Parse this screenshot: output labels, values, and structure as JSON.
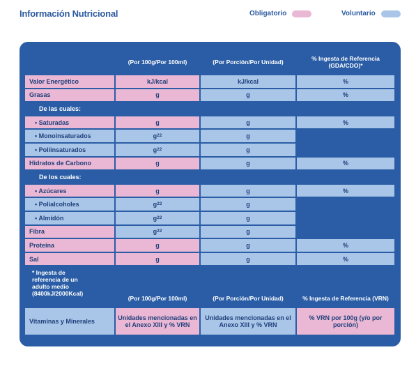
{
  "page": {
    "title": "Información Nutricional",
    "legend": {
      "mandatory": {
        "label": "Obligatorio",
        "color": "#eab8d4"
      },
      "voluntary": {
        "label": "Voluntario",
        "color": "#a9c6e8"
      }
    }
  },
  "table": {
    "headers": [
      "(Por 100g/Por 100ml)",
      "(Por Porción/Por Unidad)",
      "% Ingesta de Referencia (GDA/CDO)*"
    ],
    "rows": [
      {
        "label": "Valor Energético",
        "c1": "kJ/kcal",
        "c2": "kJ/kcal",
        "c3": "%"
      },
      {
        "label": "Grasas",
        "c1": "g",
        "c2": "g",
        "c3": "%"
      },
      {
        "label": "De las cuales:",
        "c1": "",
        "c2": "",
        "c3": ""
      },
      {
        "label": "• Saturadas",
        "c1": "g",
        "c2": "g",
        "c3": "%"
      },
      {
        "label": "• Monoinsaturados",
        "c1": "g",
        "c1_sup": "22",
        "c2": "g",
        "c3": ""
      },
      {
        "label": "• Poliinsaturados",
        "c1": "g",
        "c1_sup": "22",
        "c2": "g",
        "c3": ""
      },
      {
        "label": "Hidratos de Carbono",
        "c1": "g",
        "c2": "g",
        "c3": "%"
      },
      {
        "label": "De los cuales:",
        "c1": "",
        "c2": "",
        "c3": ""
      },
      {
        "label": "• Azúcares",
        "c1": "g",
        "c2": "g",
        "c3": "%"
      },
      {
        "label": "• Polialcoholes",
        "c1": "g",
        "c1_sup": "22",
        "c2": "g",
        "c3": ""
      },
      {
        "label": "• Almidón",
        "c1": "g",
        "c1_sup": "22",
        "c2": "g",
        "c3": ""
      },
      {
        "label": "Fibra",
        "c1": "g",
        "c1_sup": "22",
        "c2": "g",
        "c3": ""
      },
      {
        "label": "Proteína",
        "c1": "g",
        "c2": "g",
        "c3": "%"
      },
      {
        "label": "Sal",
        "c1": "g",
        "c2": "g",
        "c3": "%"
      }
    ],
    "footnote": "* Ingesta de referencia de un adulto medio (8400kJ/2000Kcal)"
  },
  "vitamins": {
    "headers": [
      "(Por 100g/Por 100ml)",
      "(Por Porción/Por Unidad)",
      "% Ingesta de Referencia (VRN)"
    ],
    "label": "Vitaminas y Minerales",
    "c1": "Unidades mencionadas en el Anexo XIII y % VRN",
    "c2": "Unidades mencionadas en el Anexo XIII y % VRN",
    "c3": "% VRN por 100g (y/o por porción)"
  }
}
